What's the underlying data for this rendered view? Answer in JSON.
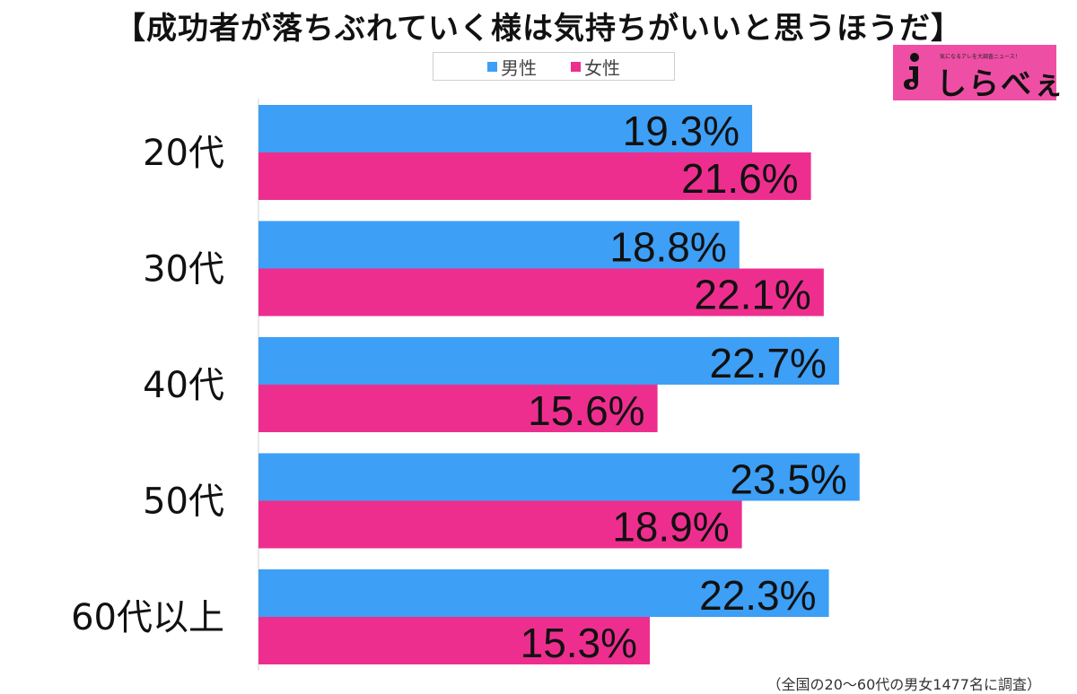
{
  "title": "【成功者が落ちぶれていく様は気持ちがいいと思うほうだ】",
  "logo": {
    "text": "しらべぇ",
    "tagline": "気になるアレを大調査ニュース！"
  },
  "footnote": "（全国の20～60代の男女1477名に調査）",
  "colors": {
    "male": "#3d9ff5",
    "female": "#ee2e8f"
  },
  "chart_data": {
    "type": "bar",
    "orientation": "horizontal",
    "categories": [
      "20代",
      "30代",
      "40代",
      "50代",
      "60代以上"
    ],
    "series": [
      {
        "name": "男性",
        "values": [
          19.3,
          18.8,
          22.7,
          23.5,
          22.3
        ]
      },
      {
        "name": "女性",
        "values": [
          21.6,
          22.1,
          15.6,
          18.9,
          15.3
        ]
      }
    ],
    "value_labels": {
      "male": [
        "19.3%",
        "18.8%",
        "22.7%",
        "23.5%",
        "22.3%"
      ],
      "female": [
        "21.6%",
        "22.1%",
        "15.6%",
        "18.9%",
        "15.3%"
      ]
    },
    "xlim": [
      0,
      28.3
    ],
    "legend_position": "top-center",
    "grid": false
  }
}
